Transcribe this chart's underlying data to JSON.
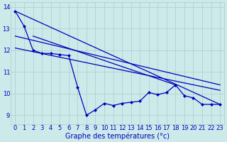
{
  "bg_color": "#cceaea",
  "grid_color": "#aacccc",
  "line_color": "#0000bb",
  "xlabel": "Graphe des températures (°c)",
  "xlabel_fontsize": 7.0,
  "tick_label_fontsize": 6.0,
  "ylim": [
    8.6,
    14.2
  ],
  "xlim": [
    -0.5,
    23.5
  ],
  "yticks": [
    9,
    10,
    11,
    12,
    13,
    14
  ],
  "xticks": [
    0,
    1,
    2,
    3,
    4,
    5,
    6,
    7,
    8,
    9,
    10,
    11,
    12,
    13,
    14,
    15,
    16,
    17,
    18,
    19,
    20,
    21,
    22,
    23
  ],
  "series": [
    {
      "x": [
        0,
        1,
        2,
        3,
        4,
        5,
        6,
        7,
        8,
        9,
        10,
        11,
        12,
        13,
        14,
        15,
        16,
        17,
        18,
        19,
        20,
        21,
        22,
        23
      ],
      "y": [
        13.8,
        13.1,
        12.0,
        11.85,
        11.85,
        11.8,
        11.75,
        10.3,
        9.0,
        9.25,
        9.55,
        9.45,
        9.55,
        9.6,
        9.65,
        10.05,
        9.95,
        10.05,
        10.4,
        9.9,
        9.8,
        9.5,
        9.5,
        9.5
      ],
      "marker": "D",
      "markersize": 2.0,
      "linewidth": 0.9,
      "linestyle": "-"
    },
    {
      "x": [
        0,
        23
      ],
      "y": [
        13.8,
        9.5
      ],
      "marker": null,
      "linewidth": 0.9,
      "linestyle": "-"
    },
    {
      "x": [
        0,
        23
      ],
      "y": [
        12.65,
        10.4
      ],
      "marker": null,
      "linewidth": 0.9,
      "linestyle": "-"
    },
    {
      "x": [
        0,
        23
      ],
      "y": [
        12.1,
        10.15
      ],
      "marker": null,
      "linewidth": 0.9,
      "linestyle": "-"
    },
    {
      "x": [
        2,
        18
      ],
      "y": [
        12.65,
        10.4
      ],
      "marker": null,
      "linewidth": 0.9,
      "linestyle": "-"
    }
  ]
}
